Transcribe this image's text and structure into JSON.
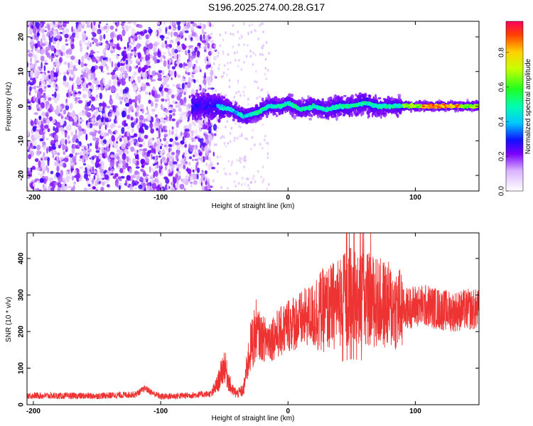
{
  "title": "S196.2025.274.00.28.G17",
  "chart_data": [
    {
      "type": "heatmap",
      "xlabel": "Height of straight line (km)",
      "ylabel": "Frequency (Hz)",
      "xlim": [
        -205,
        150
      ],
      "ylim": [
        -24.5,
        24.5
      ],
      "xticks": [
        -200,
        -100,
        0,
        100
      ],
      "yticks": [
        -20,
        -10,
        0,
        10,
        20
      ],
      "colorbar": {
        "label": "Normalized spectral amplitude",
        "range": [
          0,
          0.98
        ],
        "ticks": [
          0.0,
          0.2,
          0.4,
          0.6,
          0.8
        ]
      },
      "ridge": {
        "description_points_x": [
          -55,
          -45,
          -35,
          -25,
          -15,
          -5,
          0,
          10,
          20,
          30,
          40,
          50,
          60,
          70,
          80,
          90,
          100,
          110,
          120,
          130,
          140,
          150
        ],
        "description_points_y": [
          0,
          -1,
          -3,
          -2,
          0,
          0,
          1,
          -1,
          0,
          -1,
          0,
          0,
          1,
          0,
          0,
          0,
          0,
          0,
          0,
          0,
          0,
          0
        ]
      }
    },
    {
      "type": "line",
      "xlabel": "Height of straight line (km)",
      "ylabel": "SNR (10 * v/v)",
      "xlim": [
        -205,
        150
      ],
      "ylim": [
        0,
        470
      ],
      "xticks": [
        -200,
        -100,
        0,
        100
      ],
      "yticks": [
        0,
        100,
        200,
        300,
        400
      ],
      "color": "#ee3333",
      "series": [
        {
          "x": [
            -205,
            -180,
            -150,
            -120,
            -112,
            -108,
            -100,
            -80,
            -60,
            -55,
            -50,
            -47,
            -44,
            -40,
            -35,
            -30,
            -25,
            -20,
            -15,
            -10,
            -5,
            0,
            10,
            20,
            30,
            40,
            50,
            60,
            70,
            80,
            90,
            100,
            110,
            120,
            130,
            140,
            150
          ],
          "y": [
            25,
            24,
            24,
            28,
            45,
            35,
            22,
            25,
            30,
            60,
            110,
            70,
            40,
            30,
            40,
            150,
            200,
            180,
            180,
            190,
            200,
            220,
            230,
            250,
            260,
            280,
            300,
            290,
            280,
            270,
            260,
            270,
            270,
            260,
            255,
            260,
            260
          ]
        }
      ]
    }
  ]
}
